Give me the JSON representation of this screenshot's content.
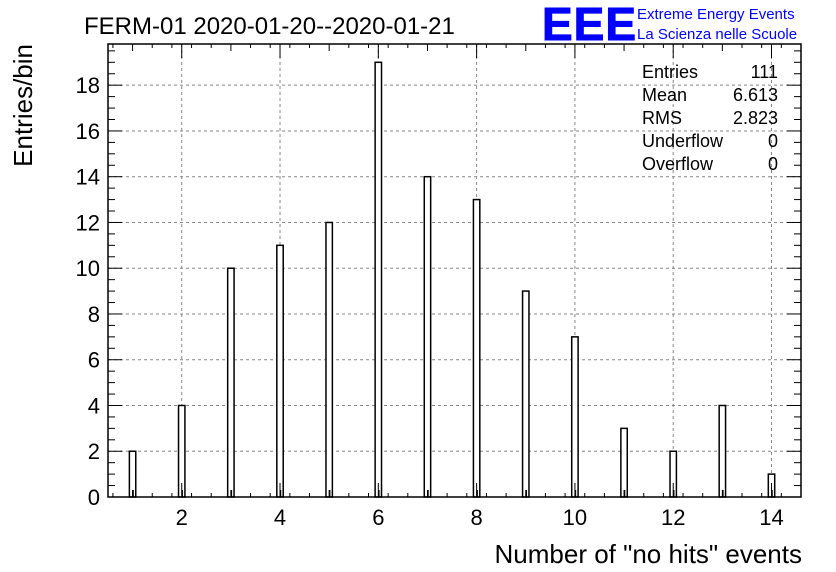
{
  "chart_data": {
    "type": "bar",
    "title": "FERM-01 2020-01-20--2020-01-21",
    "xlabel": "Number of \"no hits\" events",
    "ylabel": "Entries/bin",
    "xlim": [
      0.5,
      14.6
    ],
    "ylim": [
      0,
      19.8
    ],
    "x_ticks": [
      2,
      4,
      6,
      8,
      10,
      12,
      14
    ],
    "y_ticks": [
      0,
      2,
      4,
      6,
      8,
      10,
      12,
      14,
      16,
      18
    ],
    "grid": true,
    "x": [
      1,
      2,
      3,
      4,
      5,
      6,
      7,
      8,
      9,
      10,
      11,
      12,
      13,
      14
    ],
    "values": [
      2,
      4,
      10,
      11,
      12,
      19,
      14,
      13,
      9,
      7,
      3,
      2,
      4,
      1
    ],
    "stats": [
      {
        "label": "Entries",
        "value": "111"
      },
      {
        "label": "Mean",
        "value": "6.613"
      },
      {
        "label": "RMS",
        "value": "2.823"
      },
      {
        "label": "Underflow",
        "value": "0"
      },
      {
        "label": "Overflow",
        "value": "0"
      }
    ]
  },
  "logo": {
    "mark": "EEE",
    "line1": "Extreme Energy Events",
    "line2": "La Scienza nelle Scuole",
    "color": "#0000ff"
  }
}
